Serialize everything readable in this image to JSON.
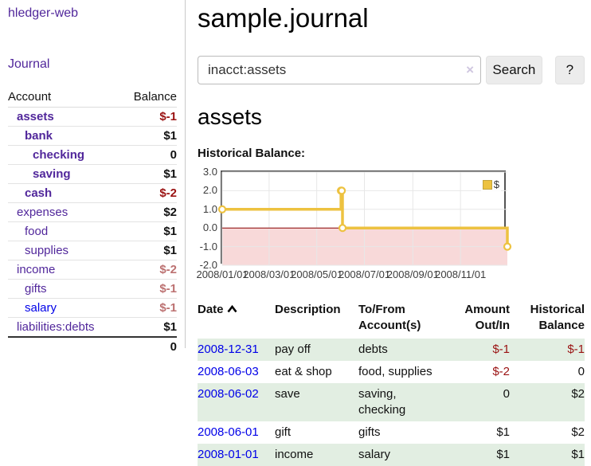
{
  "sidebar": {
    "app_title": "hledger-web",
    "journal_label": "Journal",
    "accounts_table": {
      "headers": {
        "account": "Account",
        "balance": "Balance"
      },
      "rows": [
        {
          "name": "assets",
          "indent": 1,
          "bold": true,
          "name_color": "visited",
          "balance": "$-1",
          "balance_color": "neg-strong"
        },
        {
          "name": "bank",
          "indent": 2,
          "bold": true,
          "name_color": "visited",
          "balance": "$1",
          "balance_color": "pos"
        },
        {
          "name": "checking",
          "indent": 3,
          "bold": true,
          "name_color": "visited",
          "balance": "0",
          "balance_color": "pos"
        },
        {
          "name": "saving",
          "indent": 3,
          "bold": true,
          "name_color": "visited",
          "balance": "$1",
          "balance_color": "pos"
        },
        {
          "name": "cash",
          "indent": 2,
          "bold": true,
          "name_color": "visited",
          "balance": "$-2",
          "balance_color": "neg-strong"
        },
        {
          "name": "expenses",
          "indent": 1,
          "bold": false,
          "name_color": "visited",
          "balance": "$2",
          "balance_color": "pos"
        },
        {
          "name": "food",
          "indent": 2,
          "bold": false,
          "name_color": "visited",
          "balance": "$1",
          "balance_color": "pos"
        },
        {
          "name": "supplies",
          "indent": 2,
          "bold": false,
          "name_color": "visited",
          "balance": "$1",
          "balance_color": "pos"
        },
        {
          "name": "income",
          "indent": 1,
          "bold": false,
          "name_color": "visited",
          "balance": "$-2",
          "balance_color": "neg-muted"
        },
        {
          "name": "gifts",
          "indent": 2,
          "bold": false,
          "name_color": "visited",
          "balance": "$-1",
          "balance_color": "neg-muted"
        },
        {
          "name": "salary",
          "indent": 2,
          "bold": false,
          "name_color": "unvisited",
          "balance": "$-1",
          "balance_color": "neg-muted"
        },
        {
          "name": "liabilities:debts",
          "indent": 1,
          "bold": false,
          "name_color": "visited",
          "balance": "$1",
          "balance_color": "pos"
        }
      ],
      "total": "0"
    }
  },
  "header": {
    "title": "sample.journal"
  },
  "search": {
    "query": "inacct:assets",
    "clear_icon": "×",
    "search_label": "Search",
    "help_label": "?"
  },
  "main": {
    "account_heading": "assets",
    "chart_label": "Historical Balance:"
  },
  "chart_data": {
    "type": "line",
    "title": "Historical Balance",
    "step": true,
    "series": [
      {
        "name": "$",
        "color": "#edc240",
        "points": [
          [
            "2008-01-01",
            1
          ],
          [
            "2008-06-01",
            2
          ],
          [
            "2008-06-02",
            2
          ],
          [
            "2008-06-03",
            0
          ],
          [
            "2008-12-31",
            -1
          ]
        ]
      }
    ],
    "x_range": [
      "2008-01-01",
      "2008-12-31"
    ],
    "ylim": [
      -2,
      3
    ],
    "yticks": [
      "3.0",
      "2.0",
      "1.0",
      "0.0",
      "-1.0",
      "-2.0"
    ],
    "xticks": [
      "2008/01/01",
      "2008/03/01",
      "2008/05/01",
      "2008/07/01",
      "2008/09/01",
      "2008/11/01"
    ],
    "legend": "$",
    "legend_position": "top-right",
    "grid": true,
    "grid_color": "#e7e7e7",
    "negative_region_color": "#f8d9d9",
    "zero_line_color": "#8b0000",
    "border_color": "#545454"
  },
  "transactions": {
    "headers": {
      "date": "Date",
      "description": "Description",
      "accounts_l1": "To/From",
      "accounts_l2": "Account(s)",
      "amount_l1": "Amount",
      "amount_l2": "Out/In",
      "balance_l1": "Historical",
      "balance_l2": "Balance"
    },
    "rows": [
      {
        "date": "2008-12-31",
        "description": "pay off",
        "accounts": "debts",
        "amount": "$-1",
        "amount_negative": true,
        "balance": "$-1",
        "balance_negative": true
      },
      {
        "date": "2008-06-03",
        "description": "eat & shop",
        "accounts": "food, supplies",
        "amount": "$-2",
        "amount_negative": true,
        "balance": "0",
        "balance_negative": false
      },
      {
        "date": "2008-06-02",
        "description": "save",
        "accounts": "saving, checking",
        "amount": "0",
        "amount_negative": false,
        "balance": "$2",
        "balance_negative": false
      },
      {
        "date": "2008-06-01",
        "description": "gift",
        "accounts": "gifts",
        "amount": "$1",
        "amount_negative": false,
        "balance": "$2",
        "balance_negative": false
      },
      {
        "date": "2008-01-01",
        "description": "income",
        "accounts": "salary",
        "amount": "$1",
        "amount_negative": false,
        "balance": "$1",
        "balance_negative": false
      }
    ]
  }
}
